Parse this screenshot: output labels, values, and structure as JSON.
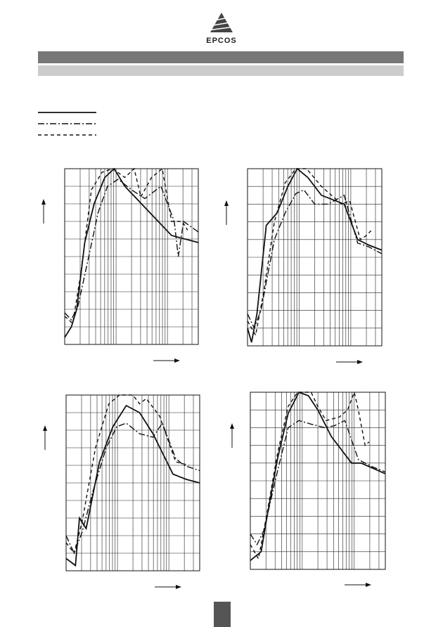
{
  "header": {
    "logo": "EPCOS"
  }
}
